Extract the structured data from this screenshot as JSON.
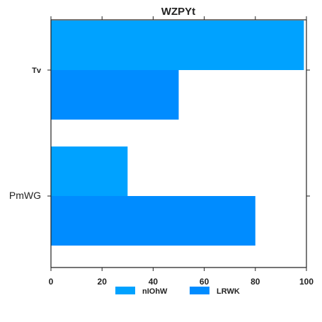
{
  "chart_data": {
    "type": "bar",
    "orientation": "horizontal",
    "title": "WZPYt",
    "xlabel": "",
    "ylabel": "",
    "categories": [
      "Tv",
      "PmWG"
    ],
    "series": [
      {
        "name": "nIOhW",
        "values": [
          99,
          30
        ],
        "color": "#00a2ff"
      },
      {
        "name": "LRWK",
        "values": [
          50,
          80
        ],
        "color": "#008cff"
      }
    ],
    "xlim": [
      0,
      100
    ],
    "x_ticks": [
      0,
      20,
      40,
      60,
      80,
      100
    ],
    "grid": false,
    "legend_position": "bottom-center"
  }
}
